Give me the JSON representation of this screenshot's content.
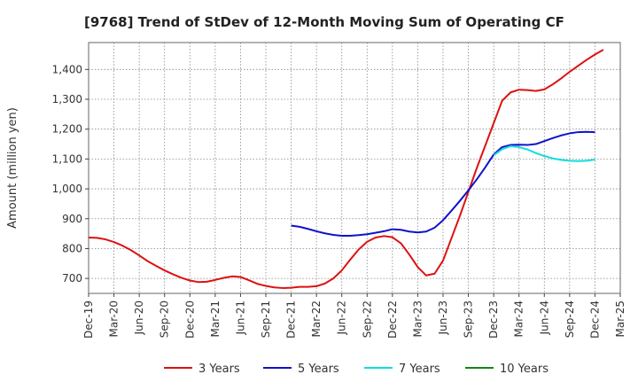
{
  "chart_data": {
    "type": "line",
    "title": "[9768]  Trend of StDev of 12-Month Moving Sum of Operating CF",
    "ylabel": "Amount (million yen)",
    "xlabel": "",
    "ylim": [
      650,
      1490
    ],
    "yticks": [
      700,
      800,
      900,
      1000,
      1100,
      1200,
      1300,
      1400
    ],
    "ytick_labels": [
      "700",
      "800",
      "900",
      "1,000",
      "1,100",
      "1,200",
      "1,300",
      "1,400"
    ],
    "x_labels": [
      "Dec-19",
      "Mar-20",
      "Jun-20",
      "Sep-20",
      "Dec-20",
      "Mar-21",
      "Jun-21",
      "Sep-21",
      "Dec-21",
      "Mar-22",
      "Jun-22",
      "Sep-22",
      "Dec-22",
      "Mar-23",
      "Jun-23",
      "Sep-23",
      "Dec-23",
      "Mar-24",
      "Jun-24",
      "Sep-24",
      "Dec-24",
      "Mar-25"
    ],
    "grid": true,
    "legend_position": "bottom",
    "series": [
      {
        "name": "3 Years",
        "color": "#dd1111",
        "start_index": 0,
        "values": [
          837,
          836,
          831,
          822,
          810,
          795,
          777,
          758,
          742,
          727,
          714,
          702,
          693,
          688,
          689,
          695,
          702,
          707,
          705,
          694,
          682,
          675,
          670,
          668,
          669,
          672,
          672,
          674,
          683,
          700,
          727,
          763,
          797,
          823,
          837,
          842,
          838,
          818,
          780,
          738,
          710,
          716,
          760,
          835,
          910,
          990,
          1070,
          1145,
          1220,
          1295,
          1323,
          1332,
          1331,
          1328,
          1333,
          1350,
          1370,
          1392,
          1412,
          1432,
          1450,
          1466
        ]
      },
      {
        "name": "5 Years",
        "color": "#1111cc",
        "start_index": 24,
        "values": [
          877,
          873,
          866,
          858,
          851,
          846,
          843,
          843,
          845,
          848,
          853,
          858,
          865,
          863,
          857,
          854,
          857,
          870,
          895,
          927,
          960,
          995,
          1032,
          1072,
          1115,
          1140,
          1147,
          1148,
          1147,
          1150,
          1160,
          1170,
          1179,
          1186,
          1190,
          1191,
          1190
        ]
      },
      {
        "name": "7 Years",
        "color": "#11dddd",
        "start_index": 48,
        "values": [
          1112,
          1133,
          1143,
          1140,
          1132,
          1120,
          1110,
          1102,
          1097,
          1094,
          1093,
          1094,
          1098
        ]
      },
      {
        "name": "10 Years",
        "color": "#118811",
        "start_index": 0,
        "values": []
      }
    ]
  }
}
